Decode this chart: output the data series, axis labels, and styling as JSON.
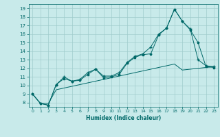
{
  "xlabel": "Humidex (Indice chaleur)",
  "bg_color": "#c8eaea",
  "grid_color": "#a0cccc",
  "line_color": "#006868",
  "x_values": [
    0,
    1,
    2,
    3,
    4,
    5,
    6,
    7,
    8,
    9,
    10,
    11,
    12,
    13,
    14,
    15,
    16,
    17,
    18,
    19,
    20,
    21,
    22,
    23
  ],
  "line1_y": [
    9.0,
    7.9,
    7.7,
    10.1,
    10.8,
    10.5,
    10.6,
    11.3,
    11.9,
    10.9,
    11.0,
    11.3,
    12.6,
    13.3,
    13.6,
    13.7,
    15.9,
    16.7,
    18.9,
    17.5,
    16.5,
    15.0,
    12.2,
    12.1
  ],
  "line2_y": [
    9.0,
    7.9,
    7.7,
    10.1,
    11.0,
    10.5,
    10.7,
    11.5,
    11.9,
    11.1,
    11.1,
    11.5,
    12.7,
    13.4,
    13.7,
    14.5,
    16.0,
    16.7,
    18.9,
    17.5,
    16.6,
    13.0,
    12.3,
    12.2
  ],
  "line3_y": [
    9.0,
    7.9,
    7.9,
    9.5,
    9.7,
    9.9,
    10.1,
    10.3,
    10.5,
    10.7,
    10.9,
    11.1,
    11.3,
    11.5,
    11.7,
    11.9,
    12.1,
    12.3,
    12.5,
    11.8,
    11.9,
    12.0,
    12.1,
    12.2
  ],
  "ylim": [
    7.5,
    19.5
  ],
  "xlim": [
    -0.5,
    23.5
  ],
  "yticks": [
    8,
    9,
    10,
    11,
    12,
    13,
    14,
    15,
    16,
    17,
    18,
    19
  ],
  "xticks": [
    0,
    1,
    2,
    3,
    4,
    5,
    6,
    7,
    8,
    9,
    10,
    11,
    12,
    13,
    14,
    15,
    16,
    17,
    18,
    19,
    20,
    21,
    22,
    23
  ]
}
